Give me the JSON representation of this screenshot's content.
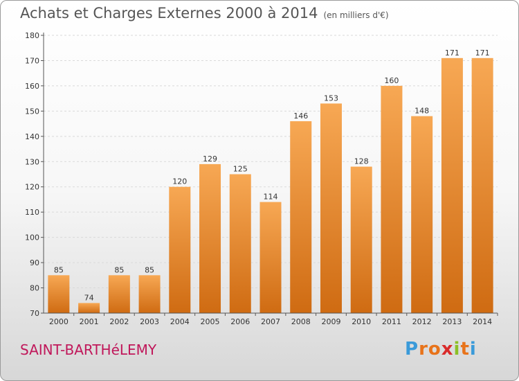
{
  "header": {
    "title": "Achats et Charges Externes 2000 à 2014",
    "unit": "(en milliers d'€)"
  },
  "footer": {
    "location": "SAINT-BARTHéLEMY",
    "logo_letters": [
      "P",
      "r",
      "o",
      "x",
      "i",
      "t",
      "i"
    ],
    "logo_colors": [
      "#3a9ad9",
      "#e8731a",
      "#e8731a",
      "#d92b2b",
      "#8cbf26",
      "#e8731a",
      "#3a9ad9"
    ]
  },
  "colors": {
    "bar_top": "#f7a854",
    "bar_bottom": "#cf6b12",
    "axis": "#555555",
    "grid": "#d9d9d9"
  },
  "chart_data": {
    "type": "bar",
    "categories": [
      "2000",
      "2001",
      "2002",
      "2003",
      "2004",
      "2005",
      "2006",
      "2007",
      "2008",
      "2009",
      "2010",
      "2011",
      "2012",
      "2013",
      "2014"
    ],
    "values": [
      85,
      74,
      85,
      85,
      120,
      129,
      125,
      114,
      146,
      153,
      128,
      160,
      148,
      171,
      171
    ],
    "ylim": [
      70,
      180
    ],
    "yticks": [
      70,
      80,
      90,
      100,
      110,
      120,
      130,
      140,
      150,
      160,
      170,
      180
    ],
    "grid": true
  }
}
